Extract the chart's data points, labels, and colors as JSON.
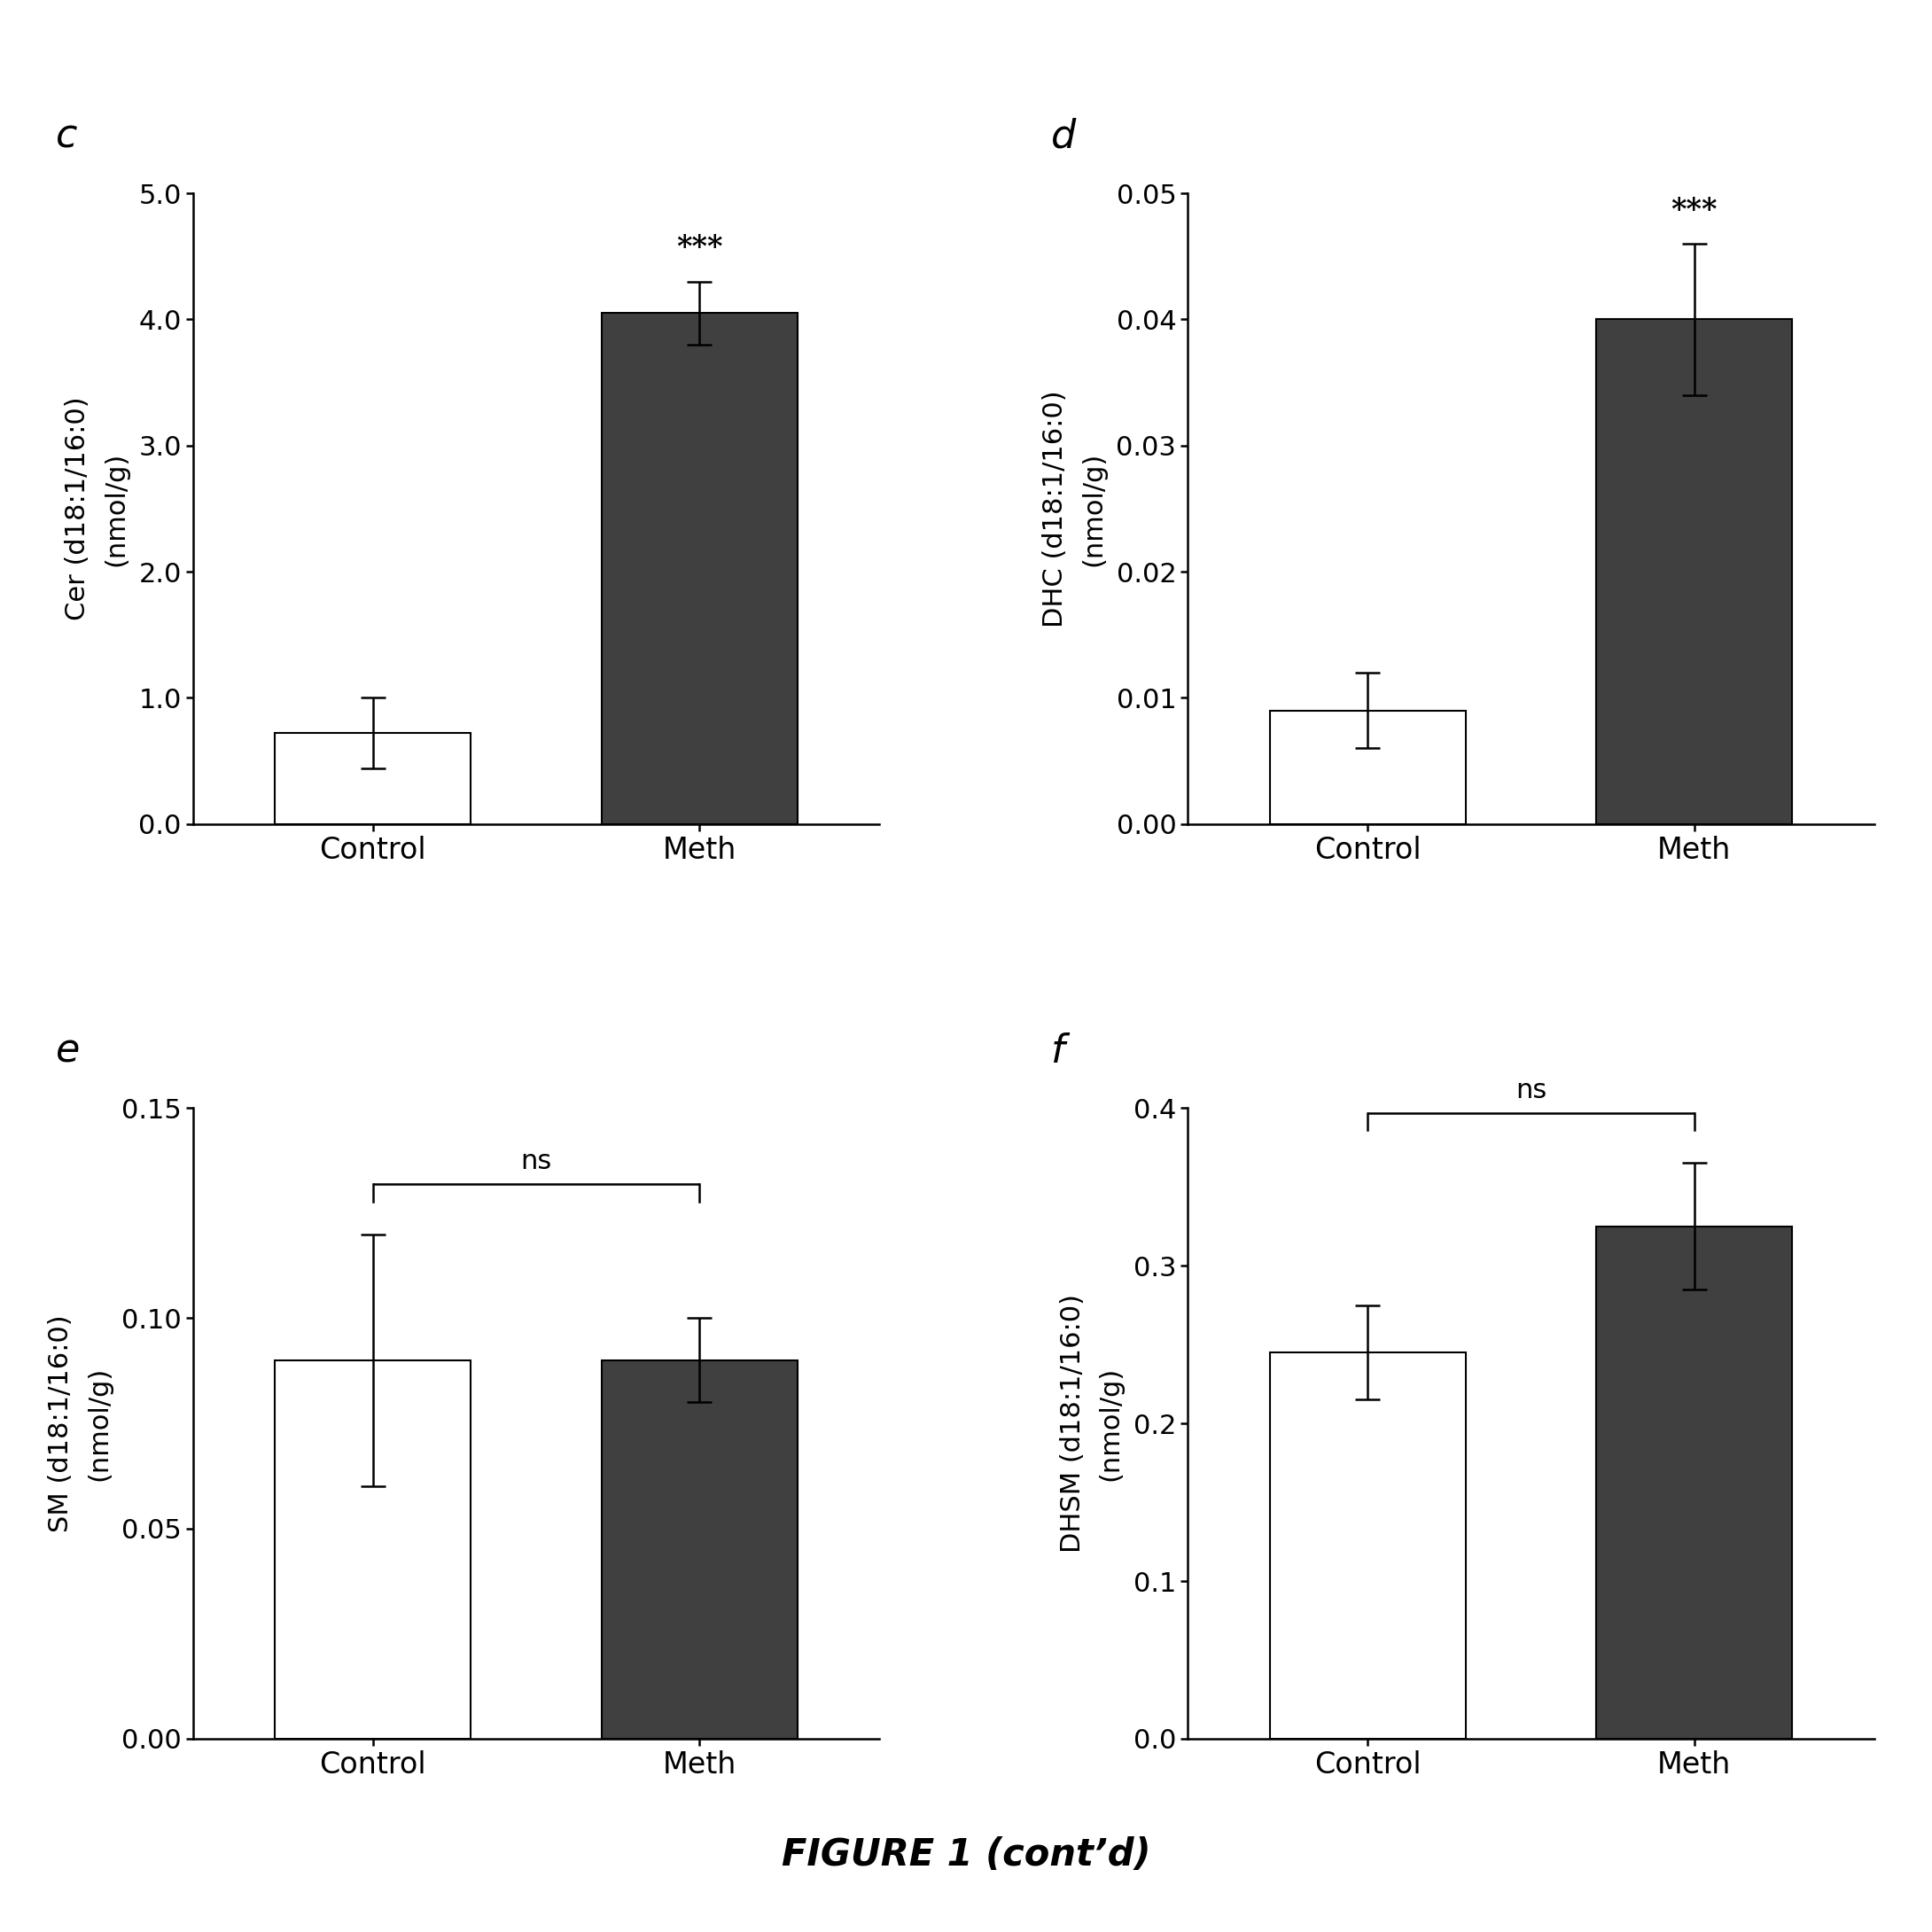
{
  "panels": [
    {
      "label": "c",
      "ylabel_line1": "Cer (d18:1/16:0)",
      "ylabel_line2": "(nmol/g)",
      "categories": [
        "Control",
        "Meth"
      ],
      "values": [
        0.72,
        4.05
      ],
      "errors": [
        0.28,
        0.25
      ],
      "colors": [
        "white",
        "#404040"
      ],
      "ylim": [
        0,
        5.0
      ],
      "yticks": [
        0.0,
        1.0,
        2.0,
        3.0,
        4.0,
        5.0
      ],
      "ytick_labels": [
        "0.0",
        "1.0",
        "2.0",
        "3.0",
        "4.0",
        "5.0"
      ],
      "significance": "***",
      "sig_on_bar": true,
      "ns_line": false
    },
    {
      "label": "d",
      "ylabel_line1": "DHC (d18:1/16:0)",
      "ylabel_line2": "(nmol/g)",
      "categories": [
        "Control",
        "Meth"
      ],
      "values": [
        0.009,
        0.04
      ],
      "errors": [
        0.003,
        0.006
      ],
      "colors": [
        "white",
        "#404040"
      ],
      "ylim": [
        0,
        0.05
      ],
      "yticks": [
        0.0,
        0.01,
        0.02,
        0.03,
        0.04,
        0.05
      ],
      "ytick_labels": [
        "0.00",
        "0.01",
        "0.02",
        "0.03",
        "0.04",
        "0.05"
      ],
      "significance": "***",
      "sig_on_bar": true,
      "ns_line": false
    },
    {
      "label": "e",
      "ylabel_line1": "SM (d18:1/16:0)",
      "ylabel_line2": "(nmol/g)",
      "categories": [
        "Control",
        "Meth"
      ],
      "values": [
        0.09,
        0.09
      ],
      "errors": [
        0.03,
        0.01
      ],
      "colors": [
        "white",
        "#404040"
      ],
      "ylim": [
        0,
        0.15
      ],
      "yticks": [
        0.0,
        0.05,
        0.1,
        0.15
      ],
      "ytick_labels": [
        "0.00",
        "0.05",
        "0.10",
        "0.15"
      ],
      "significance": "ns",
      "sig_on_bar": false,
      "ns_line": true
    },
    {
      "label": "f",
      "ylabel_line1": "DHSM (d18:1/16:0)",
      "ylabel_line2": "(nmol/g)",
      "categories": [
        "Control",
        "Meth"
      ],
      "values": [
        0.245,
        0.325
      ],
      "errors": [
        0.03,
        0.04
      ],
      "colors": [
        "white",
        "#404040"
      ],
      "ylim": [
        0,
        0.4
      ],
      "yticks": [
        0.0,
        0.1,
        0.2,
        0.3,
        0.4
      ],
      "ytick_labels": [
        "0.0",
        "0.1",
        "0.2",
        "0.3",
        "0.4"
      ],
      "significance": "ns",
      "sig_on_bar": false,
      "ns_line": true
    }
  ],
  "figure_caption": "FIGURE 1 (cont’d)",
  "bar_width": 0.6,
  "edgecolor": "black",
  "background_color": "white"
}
